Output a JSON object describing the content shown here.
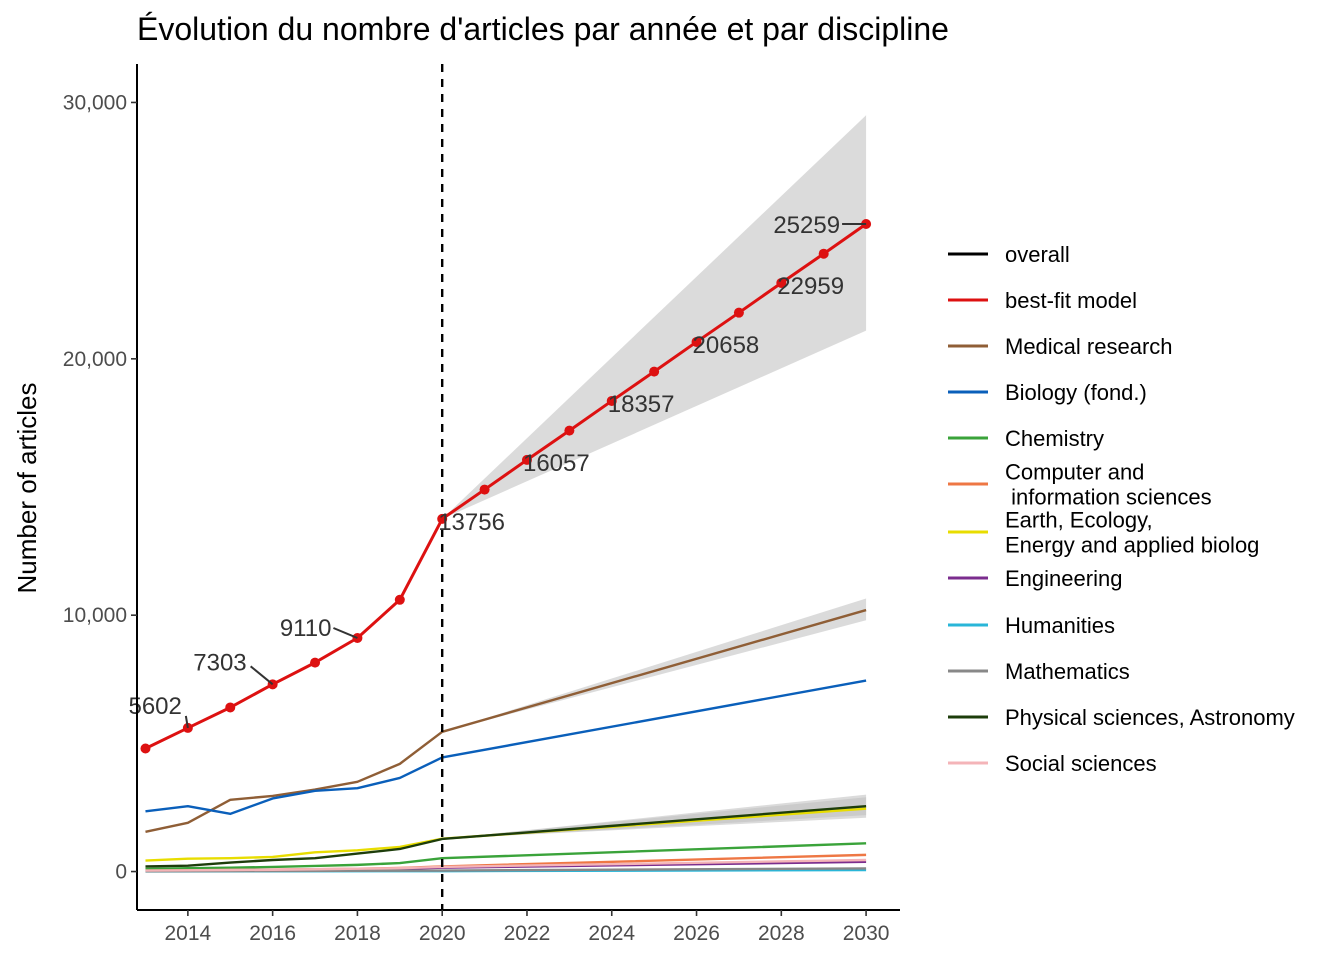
{
  "chart_data": {
    "type": "line",
    "title": "Évolution du nombre d'articles par année et par discipline",
    "xlabel": "",
    "ylabel": "Number of articles",
    "xlim": [
      2012.8,
      2030.8
    ],
    "ylim": [
      -1500,
      31500
    ],
    "x_ticks": [
      2014,
      2016,
      2018,
      2020,
      2022,
      2024,
      2026,
      2028,
      2030
    ],
    "y_ticks": [
      0,
      10000,
      20000,
      30000
    ],
    "y_tick_labels": [
      "0",
      "10,000",
      "20,000",
      "30,000"
    ],
    "grid": false,
    "legend_position": "right",
    "vline_x": 2020,
    "series": [
      {
        "name": "overall",
        "color": "#000000",
        "x": [],
        "values": []
      },
      {
        "name": "best-fit model",
        "color": "#dd1111",
        "x": [
          2013,
          2014,
          2015,
          2016,
          2017,
          2018,
          2019,
          2020,
          2021,
          2022,
          2023,
          2024,
          2025,
          2026,
          2027,
          2028,
          2029,
          2030
        ],
        "values": [
          4800,
          5602,
          6400,
          7303,
          8150,
          9110,
          10600,
          13756,
          14900,
          16057,
          17200,
          18357,
          19500,
          20658,
          21800,
          22959,
          24100,
          25259
        ],
        "band_x": [
          2020,
          2030
        ],
        "band_lo": [
          13756,
          21100
        ],
        "band_hi": [
          13756,
          29500
        ]
      },
      {
        "name": "Medical research",
        "color": "#8f5e36",
        "x": [
          2013,
          2014,
          2015,
          2016,
          2017,
          2018,
          2019,
          2020,
          2030
        ],
        "values": [
          1550,
          1900,
          2800,
          2950,
          3200,
          3500,
          4200,
          5450,
          10200
        ],
        "band_x": [
          2020,
          2030
        ],
        "band_lo": [
          5450,
          9800
        ],
        "band_hi": [
          5450,
          10650
        ]
      },
      {
        "name": "Biology (fond.)",
        "color": "#0a5fba",
        "x": [
          2013,
          2014,
          2015,
          2016,
          2017,
          2018,
          2019,
          2020,
          2030
        ],
        "values": [
          2350,
          2550,
          2250,
          2850,
          3150,
          3250,
          3650,
          4450,
          7450
        ]
      },
      {
        "name": "Chemistry",
        "color": "#3aa33a",
        "x": [
          2013,
          2014,
          2015,
          2016,
          2017,
          2018,
          2019,
          2020,
          2030
        ],
        "values": [
          100,
          130,
          150,
          180,
          220,
          260,
          330,
          520,
          1100
        ]
      },
      {
        "name": "Computer and\n information sciences",
        "color": "#ee7744",
        "x": [
          2013,
          2014,
          2015,
          2016,
          2017,
          2018,
          2019,
          2020,
          2030
        ],
        "values": [
          40,
          50,
          60,
          75,
          90,
          110,
          140,
          200,
          650
        ]
      },
      {
        "name": "Earth, Ecology,\nEnergy and applied biolog",
        "color": "#e8dd00",
        "x": [
          2013,
          2014,
          2015,
          2016,
          2017,
          2018,
          2019,
          2020,
          2030
        ],
        "values": [
          430,
          500,
          520,
          570,
          750,
          830,
          960,
          1280,
          2450
        ],
        "band_x": [
          2020,
          2030
        ],
        "band_lo": [
          1280,
          2100
        ],
        "band_hi": [
          1280,
          2900
        ]
      },
      {
        "name": "Engineering",
        "color": "#7b2d8e",
        "x": [
          2013,
          2014,
          2015,
          2016,
          2017,
          2018,
          2019,
          2020,
          2030
        ],
        "values": [
          20,
          30,
          40,
          50,
          60,
          80,
          100,
          150,
          380
        ]
      },
      {
        "name": "Humanities",
        "color": "#29b6d8",
        "x": [
          2013,
          2020,
          2030
        ],
        "values": [
          5,
          15,
          60
        ]
      },
      {
        "name": "Mathematics",
        "color": "#888888",
        "x": [
          2013,
          2020,
          2030
        ],
        "values": [
          10,
          40,
          120
        ]
      },
      {
        "name": "Physical sciences, Astronomy",
        "color": "#1d3d0b",
        "x": [
          2013,
          2014,
          2015,
          2016,
          2017,
          2018,
          2019,
          2020,
          2030
        ],
        "values": [
          200,
          230,
          350,
          450,
          520,
          700,
          880,
          1270,
          2550
        ],
        "band_x": [
          2020,
          2030
        ],
        "band_lo": [
          1270,
          2200
        ],
        "band_hi": [
          1270,
          3000
        ]
      },
      {
        "name": "Social sciences",
        "color": "#f4b4b8",
        "x": [
          2013,
          2014,
          2015,
          2016,
          2017,
          2018,
          2019,
          2020,
          2030
        ],
        "values": [
          40,
          50,
          60,
          70,
          90,
          110,
          130,
          180,
          450
        ]
      }
    ],
    "point_labels": [
      {
        "x": 2014,
        "y": 5602,
        "text": "5602"
      },
      {
        "x": 2016,
        "y": 7303,
        "text": "7303"
      },
      {
        "x": 2018,
        "y": 9110,
        "text": "9110"
      },
      {
        "x": 2020,
        "y": 13756,
        "text": "13756"
      },
      {
        "x": 2022,
        "y": 16057,
        "text": "16057"
      },
      {
        "x": 2024,
        "y": 18357,
        "text": "18357"
      },
      {
        "x": 2026,
        "y": 20658,
        "text": "20658"
      },
      {
        "x": 2028,
        "y": 22959,
        "text": "22959"
      },
      {
        "x": 2030,
        "y": 25259,
        "text": "25259"
      }
    ]
  }
}
